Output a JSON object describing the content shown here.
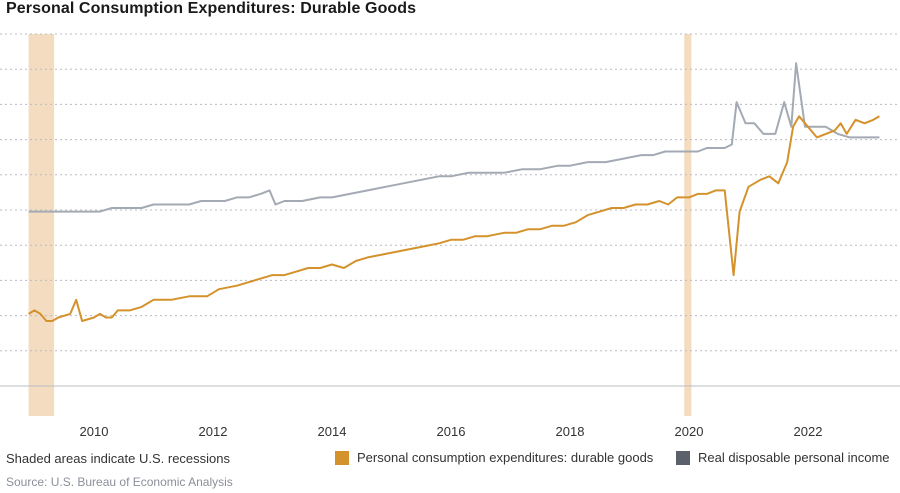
{
  "title": "Personal Consumption Expenditures: Durable Goods",
  "note": "Shaded areas indicate U.S. recessions",
  "source": "Source: U.S. Bureau of Economic Analysis",
  "colors": {
    "pce": "#D4922C",
    "income": "#A3AAB3",
    "income_swatch": "#5B616B",
    "recession": "#F4DCC0",
    "grid": "#B8BCC2",
    "axis_text": "#333333"
  },
  "legend": [
    {
      "label": "Personal consumption expenditures: durable goods",
      "color": "#D4922C"
    },
    {
      "label": "Real disposable personal income",
      "color": "#5B616B"
    }
  ],
  "chart_data": {
    "type": "line",
    "title": "Personal Consumption Expenditures: Durable Goods",
    "xlabel": "",
    "ylabel": "",
    "xlim": [
      2008.9,
      2023.25
    ],
    "ylim": [
      0,
      100
    ],
    "x_ticks": [
      2010,
      2012,
      2014,
      2016,
      2018,
      2020,
      2022
    ],
    "y_tick_labels_shown": false,
    "grid": "horizontal dotted",
    "recessions": [
      [
        2008.9,
        2009.33
      ],
      [
        2019.92,
        2020.04
      ]
    ],
    "series": [
      {
        "name": "Personal consumption expenditures: durable goods",
        "color": "#D4922C",
        "points": [
          [
            2008.9,
            19
          ],
          [
            2009.0,
            20
          ],
          [
            2009.1,
            19
          ],
          [
            2009.2,
            17
          ],
          [
            2009.3,
            17
          ],
          [
            2009.4,
            18
          ],
          [
            2009.6,
            19
          ],
          [
            2009.7,
            23
          ],
          [
            2009.8,
            17
          ],
          [
            2010.0,
            18
          ],
          [
            2010.1,
            19
          ],
          [
            2010.2,
            18
          ],
          [
            2010.3,
            18
          ],
          [
            2010.4,
            20
          ],
          [
            2010.6,
            20
          ],
          [
            2010.8,
            21
          ],
          [
            2011.0,
            23
          ],
          [
            2011.3,
            23
          ],
          [
            2011.6,
            24
          ],
          [
            2011.9,
            24
          ],
          [
            2012.0,
            25
          ],
          [
            2012.1,
            26
          ],
          [
            2012.4,
            27
          ],
          [
            2012.6,
            28
          ],
          [
            2012.8,
            29
          ],
          [
            2013.0,
            30
          ],
          [
            2013.2,
            30
          ],
          [
            2013.4,
            31
          ],
          [
            2013.6,
            32
          ],
          [
            2013.8,
            32
          ],
          [
            2014.0,
            33
          ],
          [
            2014.2,
            32
          ],
          [
            2014.4,
            34
          ],
          [
            2014.6,
            35
          ],
          [
            2014.9,
            36
          ],
          [
            2015.2,
            37
          ],
          [
            2015.5,
            38
          ],
          [
            2015.8,
            39
          ],
          [
            2016.0,
            40
          ],
          [
            2016.2,
            40
          ],
          [
            2016.4,
            41
          ],
          [
            2016.6,
            41
          ],
          [
            2016.9,
            42
          ],
          [
            2017.1,
            42
          ],
          [
            2017.3,
            43
          ],
          [
            2017.5,
            43
          ],
          [
            2017.7,
            44
          ],
          [
            2017.9,
            44
          ],
          [
            2018.1,
            45
          ],
          [
            2018.3,
            47
          ],
          [
            2018.5,
            48
          ],
          [
            2018.7,
            49
          ],
          [
            2018.9,
            49
          ],
          [
            2019.1,
            50
          ],
          [
            2019.3,
            50
          ],
          [
            2019.5,
            51
          ],
          [
            2019.65,
            50
          ],
          [
            2019.8,
            52
          ],
          [
            2020.0,
            52
          ],
          [
            2020.15,
            53
          ],
          [
            2020.3,
            53
          ],
          [
            2020.45,
            54
          ],
          [
            2020.6,
            54
          ],
          [
            2020.75,
            30
          ],
          [
            2020.85,
            48
          ],
          [
            2021.0,
            55
          ],
          [
            2021.2,
            57
          ],
          [
            2021.35,
            58
          ],
          [
            2021.5,
            56
          ],
          [
            2021.65,
            62
          ],
          [
            2021.75,
            72
          ],
          [
            2021.85,
            75
          ],
          [
            2022.0,
            72
          ],
          [
            2022.15,
            69
          ],
          [
            2022.3,
            70
          ],
          [
            2022.45,
            71
          ],
          [
            2022.55,
            73
          ],
          [
            2022.65,
            70
          ],
          [
            2022.8,
            74
          ],
          [
            2022.95,
            73
          ],
          [
            2023.1,
            74
          ],
          [
            2023.2,
            75
          ]
        ]
      },
      {
        "name": "Real disposable personal income",
        "color": "#A3AAB3",
        "points": [
          [
            2008.9,
            48
          ],
          [
            2009.0,
            48
          ],
          [
            2009.2,
            48
          ],
          [
            2009.3,
            48
          ],
          [
            2009.5,
            48
          ],
          [
            2009.7,
            48
          ],
          [
            2009.9,
            48
          ],
          [
            2010.1,
            48
          ],
          [
            2010.3,
            49
          ],
          [
            2010.6,
            49
          ],
          [
            2010.8,
            49
          ],
          [
            2011.0,
            50
          ],
          [
            2011.2,
            50
          ],
          [
            2011.4,
            50
          ],
          [
            2011.6,
            50
          ],
          [
            2011.8,
            51
          ],
          [
            2012.0,
            51
          ],
          [
            2012.2,
            51
          ],
          [
            2012.4,
            52
          ],
          [
            2012.6,
            52
          ],
          [
            2012.8,
            53
          ],
          [
            2012.95,
            54
          ],
          [
            2013.05,
            50
          ],
          [
            2013.2,
            51
          ],
          [
            2013.5,
            51
          ],
          [
            2013.8,
            52
          ],
          [
            2014.0,
            52
          ],
          [
            2014.3,
            53
          ],
          [
            2014.6,
            54
          ],
          [
            2014.9,
            55
          ],
          [
            2015.2,
            56
          ],
          [
            2015.5,
            57
          ],
          [
            2015.8,
            58
          ],
          [
            2016.0,
            58
          ],
          [
            2016.3,
            59
          ],
          [
            2016.6,
            59
          ],
          [
            2016.9,
            59
          ],
          [
            2017.2,
            60
          ],
          [
            2017.5,
            60
          ],
          [
            2017.8,
            61
          ],
          [
            2018.0,
            61
          ],
          [
            2018.3,
            62
          ],
          [
            2018.6,
            62
          ],
          [
            2018.9,
            63
          ],
          [
            2019.2,
            64
          ],
          [
            2019.4,
            64
          ],
          [
            2019.6,
            65
          ],
          [
            2019.8,
            65
          ],
          [
            2020.0,
            65
          ],
          [
            2020.15,
            65
          ],
          [
            2020.3,
            66
          ],
          [
            2020.45,
            66
          ],
          [
            2020.6,
            66
          ],
          [
            2020.72,
            67
          ],
          [
            2020.8,
            79
          ],
          [
            2020.95,
            73
          ],
          [
            2021.1,
            73
          ],
          [
            2021.25,
            70
          ],
          [
            2021.45,
            70
          ],
          [
            2021.6,
            79
          ],
          [
            2021.72,
            72
          ],
          [
            2021.8,
            90
          ],
          [
            2021.95,
            72
          ],
          [
            2022.1,
            72
          ],
          [
            2022.3,
            72
          ],
          [
            2022.5,
            70
          ],
          [
            2022.7,
            69
          ],
          [
            2022.9,
            69
          ],
          [
            2023.1,
            69
          ],
          [
            2023.2,
            69
          ]
        ]
      }
    ]
  }
}
